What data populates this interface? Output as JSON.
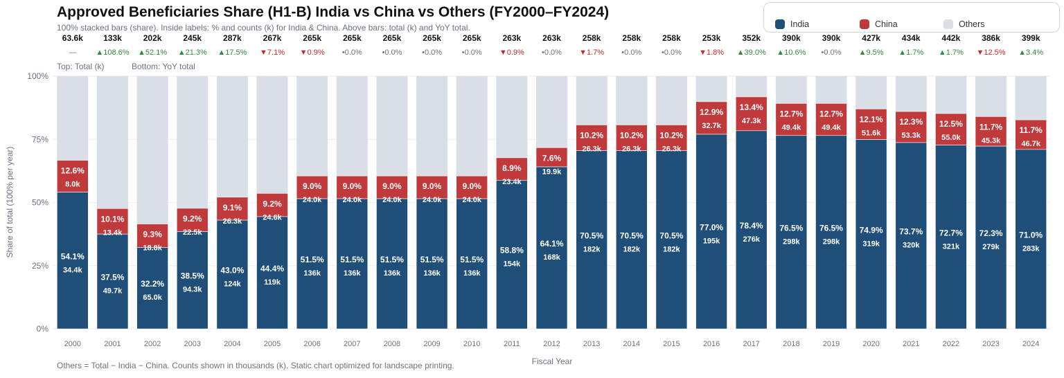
{
  "chart_data": {
    "type": "bar",
    "stacked": "100%",
    "title": "Approved Beneficiaries Share (H1-B) India vs China vs Others (FY2000–FY2024)",
    "subtitle": "100% stacked bars (share). Inside labels: % and counts (k) for India & China. Above bars: total (k) and YoY total.",
    "xlabel": "Fiscal Year",
    "ylabel": "Share of total (100% per year)",
    "ylim": [
      0,
      100
    ],
    "yticks": [
      "0%",
      "25%",
      "50%",
      "75%",
      "100%"
    ],
    "grid": true,
    "legend_placement": "top-right",
    "top_labels_note": [
      "Top: Total (k)",
      "Bottom: YoY total"
    ],
    "footer": "Others = Total − India − China. Counts shown in thousands (k). Static chart optimized for landscape printing.",
    "categories": [
      "2000",
      "2001",
      "2002",
      "2003",
      "2004",
      "2005",
      "2006",
      "2007",
      "2008",
      "2009",
      "2010",
      "2011",
      "2012",
      "2013",
      "2014",
      "2015",
      "2016",
      "2017",
      "2018",
      "2019",
      "2020",
      "2021",
      "2022",
      "2023",
      "2024"
    ],
    "totals": [
      "63.6k",
      "133k",
      "202k",
      "245k",
      "287k",
      "267k",
      "265k",
      "265k",
      "265k",
      "265k",
      "265k",
      "263k",
      "263k",
      "258k",
      "258k",
      "258k",
      "253k",
      "352k",
      "390k",
      "390k",
      "427k",
      "434k",
      "442k",
      "386k",
      "399k"
    ],
    "yoy": [
      "—",
      "▲108.6%",
      "▲52.1%",
      "▲21.3%",
      "▲17.5%",
      "▼7.1%",
      "▼0.9%",
      "•0.0%",
      "•0.0%",
      "•0.0%",
      "•0.0%",
      "▼0.9%",
      "•0.0%",
      "▼1.7%",
      "•0.0%",
      "•0.0%",
      "▼1.8%",
      "▲39.0%",
      "▲10.6%",
      "•0.0%",
      "▲9.5%",
      "▲1.7%",
      "▲1.7%",
      "▼12.5%",
      "▲3.4%"
    ],
    "series": [
      {
        "name": "India",
        "color": "#1f4e79",
        "values": [
          54.1,
          37.5,
          32.2,
          38.5,
          43.0,
          44.4,
          51.5,
          51.5,
          51.5,
          51.5,
          51.5,
          58.8,
          64.1,
          70.5,
          70.5,
          70.5,
          77.0,
          78.4,
          76.5,
          76.5,
          74.9,
          73.7,
          72.7,
          72.3,
          71.0
        ],
        "counts": [
          "34.4k",
          "49.7k",
          "65.0k",
          "94.3k",
          "124k",
          "119k",
          "136k",
          "136k",
          "136k",
          "136k",
          "136k",
          "154k",
          "168k",
          "182k",
          "182k",
          "182k",
          "195k",
          "276k",
          "298k",
          "298k",
          "319k",
          "320k",
          "321k",
          "279k",
          "283k"
        ]
      },
      {
        "name": "China",
        "color": "#c0393b",
        "values": [
          12.6,
          10.1,
          9.3,
          9.2,
          9.1,
          9.2,
          9.0,
          9.0,
          9.0,
          9.0,
          9.0,
          8.9,
          7.6,
          10.2,
          10.2,
          10.2,
          12.9,
          13.4,
          12.7,
          12.7,
          12.1,
          12.3,
          12.5,
          11.7,
          11.7
        ],
        "counts": [
          "8.0k",
          "13.4k",
          "18.8k",
          "22.5k",
          "26.3k",
          "24.6k",
          "24.0k",
          "24.0k",
          "24.0k",
          "24.0k",
          "24.0k",
          "23.4k",
          "19.9k",
          "26.3k",
          "26.3k",
          "26.3k",
          "32.7k",
          "47.3k",
          "49.4k",
          "49.4k",
          "51.6k",
          "53.3k",
          "55.0k",
          "45.3k",
          "46.7k"
        ]
      },
      {
        "name": "Others",
        "color": "#d9dee7"
      }
    ],
    "yoy_colors": {
      "up": "#2e8b3e",
      "down": "#c62828",
      "flat": "#6b7280"
    }
  }
}
